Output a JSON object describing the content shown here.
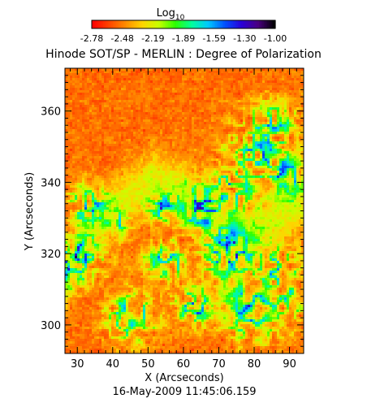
{
  "chart_data": {
    "type": "heatmap",
    "title": "Hinode SOT/SP - MERLIN : Degree of Polarization",
    "colorbar": {
      "label_base": "Log",
      "label_sub": "10",
      "ticks": [
        "-2.78",
        "-2.48",
        "-2.19",
        "-1.89",
        "-1.59",
        "-1.30",
        "-1.00"
      ],
      "vmin": -2.78,
      "vmax": -1.0,
      "colormap": [
        "#ff0000",
        "#ff4400",
        "#ff8c00",
        "#ffd400",
        "#c8ff00",
        "#2cff00",
        "#00ff9c",
        "#00c8ff",
        "#0050ff",
        "#2a00d8",
        "#4a0080",
        "#000000"
      ]
    },
    "xlabel": "X (Arcseconds)",
    "ylabel": "Y (Arcseconds)",
    "xlim": [
      26.5,
      94
    ],
    "ylim": [
      292,
      372
    ],
    "xticks": [
      30,
      40,
      50,
      60,
      70,
      80,
      90
    ],
    "yticks": [
      300,
      320,
      340,
      360
    ],
    "timestamp": "16-May-2009 11:45:06.159",
    "grid": false
  }
}
